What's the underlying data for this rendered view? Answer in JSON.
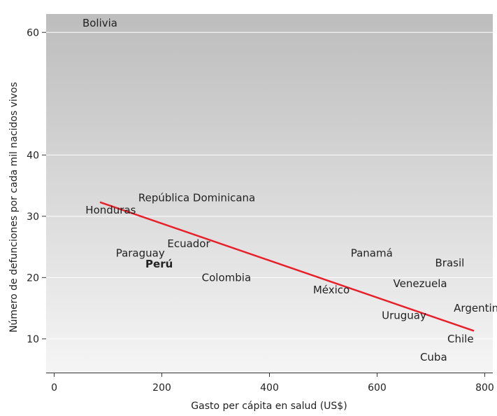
{
  "chart_data": {
    "type": "scatter",
    "title": "",
    "xlabel": "Gasto per cápita en salud (US$)",
    "ylabel": "Número de defunciones por cada mil nacidos vivos",
    "xlim": [
      -15,
      815
    ],
    "ylim": [
      4.5,
      63
    ],
    "x_ticks": [
      0,
      200,
      400,
      600,
      800
    ],
    "y_ticks": [
      10,
      20,
      30,
      40,
      60
    ],
    "grid": "horizontal",
    "points": [
      {
        "label": "Bolivia",
        "x": 85,
        "y": 61.5
      },
      {
        "label": "República Dominicana",
        "x": 265,
        "y": 33
      },
      {
        "label": "Honduras",
        "x": 105,
        "y": 31
      },
      {
        "label": "Ecuador",
        "x": 250,
        "y": 25.5
      },
      {
        "label": "Paraguay",
        "x": 160,
        "y": 24
      },
      {
        "label": "Perú",
        "x": 195,
        "y": 22.2,
        "highlight": true
      },
      {
        "label": "Colombia",
        "x": 320,
        "y": 20
      },
      {
        "label": "Panamá",
        "x": 590,
        "y": 24
      },
      {
        "label": "Brasil",
        "x": 735,
        "y": 22.4
      },
      {
        "label": "México",
        "x": 515,
        "y": 18
      },
      {
        "label": "Venezuela",
        "x": 680,
        "y": 19
      },
      {
        "label": "Argentina",
        "x": 790,
        "y": 15
      },
      {
        "label": "Uruguay",
        "x": 650,
        "y": 13.8
      },
      {
        "label": "Chile",
        "x": 755,
        "y": 10
      },
      {
        "label": "Cuba",
        "x": 705,
        "y": 7
      }
    ],
    "trendline": {
      "x": [
        85,
        780
      ],
      "y": [
        32.3,
        11.3
      ]
    },
    "colors": {
      "trendline": "#e8202a",
      "highlight": "#e8202a",
      "text": "#222222",
      "background_top": "#bdbdbd",
      "background_bottom": "#f5f5f5",
      "grid": "#ffffff"
    }
  }
}
